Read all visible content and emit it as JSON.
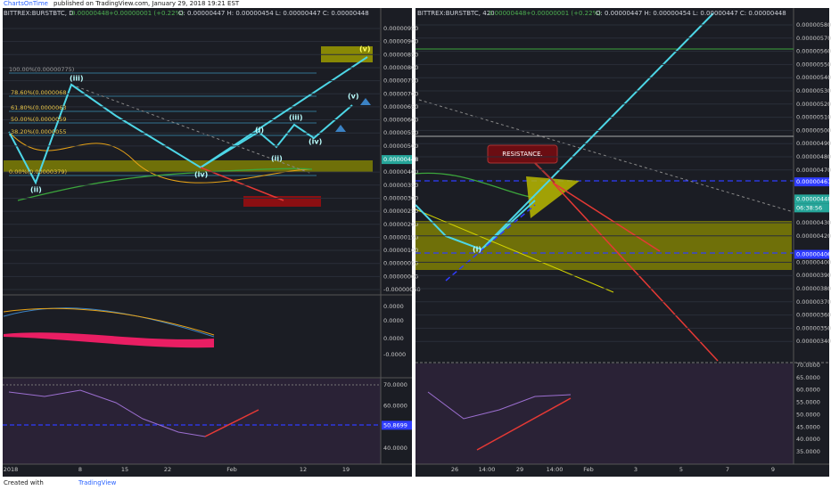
{
  "header": {
    "author": "ChartsOnTime",
    "text": "published on TradingView.com, January 29, 2018 19:21 EST"
  },
  "left": {
    "symbol": "BITTREX:BURSTBTC, D",
    "last": "0.00000448",
    "change": "+0.00000001 (+0.22%)",
    "ohlc": "O: 0.00000447 H: 0.00000454 L: 0.00000447 C: 0.00000448",
    "price_axis": [
      "0.00000950",
      "0.00000900",
      "0.00000850",
      "0.00000800",
      "0.00000750",
      "0.00000700",
      "0.00000650",
      "0.00000600",
      "0.00000550",
      "0.00000500",
      "0.00000400",
      "0.00000350",
      "0.00000300",
      "0.00000250",
      "0.00000200",
      "0.00000150",
      "0.00000100",
      "0.00000050",
      "0.00000000",
      "-0.00000050"
    ],
    "price_tag": "0.00000448",
    "macd_axis": [
      "0.0000",
      "0.0000",
      "0.0000",
      "-0.0000"
    ],
    "rsi_axis": [
      "70.0000",
      "60.0000",
      "40.0000"
    ],
    "rsi_tag": "50.8699",
    "time_axis": [
      "2018",
      "8",
      "15",
      "22",
      "Feb",
      "12",
      "19"
    ],
    "fib": [
      "100.00%(0.00000775)",
      "78.60%(0.0000068",
      "61.80%(0.0000063",
      "50.00%(0.0000059",
      "38.20%(0.0000055",
      "0.00%(0.00000379)"
    ],
    "waves": [
      "(iii)",
      "(ii)",
      "(i)",
      "(ii)",
      "(iii)",
      "(iv)",
      "(iv)",
      "(v)",
      "(v)"
    ]
  },
  "right": {
    "symbol": "BITTREX:BURSTBTC, 420",
    "last": "0.00000448",
    "change": "+0.00000001 (+0.22%)",
    "ohlc": "O: 0.00000447 H: 0.00000454 L: 0.00000447 C: 0.00000448",
    "price_axis": [
      "0.00000580",
      "0.00000570",
      "0.00000560",
      "0.00000550",
      "0.00000540",
      "0.00000530",
      "0.00000520",
      "0.00000510",
      "0.00000500",
      "0.00000490",
      "0.00000480",
      "0.00000470",
      "0.00000430",
      "0.00000420",
      "0.00000400",
      "0.00000390",
      "0.00000380",
      "0.00000370",
      "0.00000360",
      "0.00000350",
      "0.00000340"
    ],
    "tags": [
      "0.00000461",
      "0.00000448",
      "06:38:56",
      "0.00000406"
    ],
    "rsi_axis": [
      "70.0000",
      "65.0000",
      "60.0000",
      "55.0000",
      "50.0000",
      "45.0000",
      "40.0000",
      "35.0000"
    ],
    "time_axis": [
      "26",
      "14:00",
      "29",
      "14:00",
      "Feb",
      "3",
      "5",
      "7",
      "9"
    ],
    "annotation": "RESISTANCE.",
    "wave": "(i)"
  },
  "footer": {
    "created": "Created with",
    "brand": "TradingView"
  }
}
